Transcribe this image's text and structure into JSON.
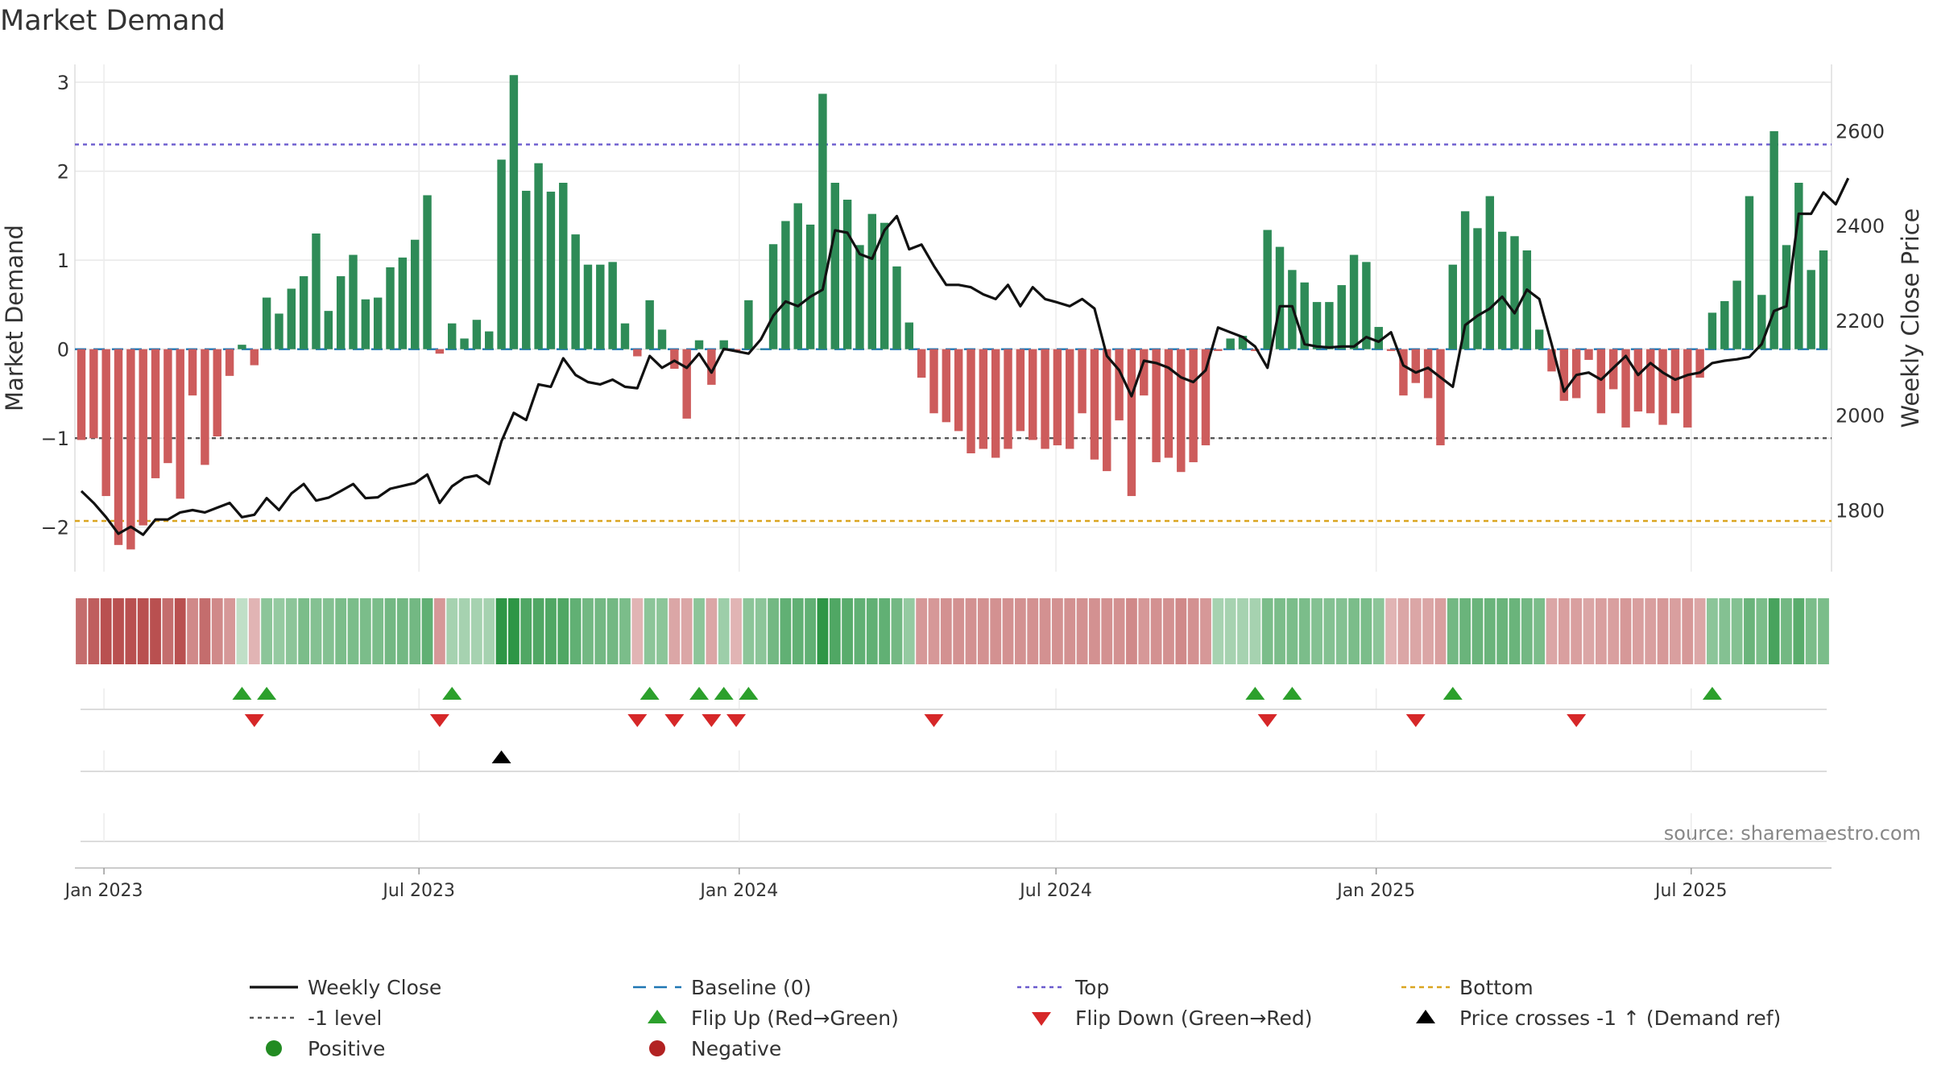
{
  "chart_data": {
    "type": "bar",
    "title": "Market Demand",
    "ylabel_left": "Market Demand",
    "ylabel_right": "Weekly Close Price",
    "source": "source: sharemaestro.com",
    "ylim_left": [
      -2.5,
      3.2
    ],
    "ylim_right": [
      1670,
      2740
    ],
    "yticks_left": [
      3,
      2,
      1,
      0,
      -1,
      -2
    ],
    "yticks_left_labels": [
      "3",
      "2",
      "1",
      "0",
      "−1",
      "−2"
    ],
    "yticks_right": [
      2600,
      2400,
      2200,
      2000,
      1800
    ],
    "yticks_right_labels": [
      "2600",
      "2400",
      "2200",
      "2000",
      "1800"
    ],
    "x_start_date": "2022-12-19",
    "x_end_date": "2025-09-15",
    "x_tick_dates": [
      "2023-01-01",
      "2023-07-01",
      "2024-01-01",
      "2024-07-01",
      "2025-01-01",
      "2025-07-01"
    ],
    "x_tick_labels": [
      "Jan 2023",
      "Jul 2023",
      "Jan 2024",
      "Jul 2024",
      "Jan 2025",
      "Jul 2025"
    ],
    "reference_lines": {
      "top": 2.3,
      "bottom": -1.93,
      "minus_one": -1,
      "baseline": 0
    },
    "colors": {
      "positive": "#2e8b57",
      "negative": "#cd5c5c",
      "close": "#111111",
      "top_line": "#6a5acd",
      "bottom_line": "#daa520",
      "minus_one_line": "#555555",
      "baseline": "#1f77b4",
      "flip_up": "#2ca02c",
      "flip_down": "#d62728"
    },
    "demand_values": [
      -1.02,
      -1.0,
      -1.65,
      -2.2,
      -2.25,
      -1.98,
      -1.45,
      -1.28,
      -1.68,
      -0.52,
      -1.3,
      -0.98,
      -0.3,
      0.05,
      -0.18,
      0.58,
      0.4,
      0.68,
      0.82,
      1.3,
      0.43,
      0.82,
      1.06,
      0.56,
      0.58,
      0.92,
      1.03,
      1.23,
      1.73,
      -0.05,
      0.29,
      0.12,
      0.33,
      0.2,
      2.13,
      3.08,
      1.78,
      2.09,
      1.77,
      1.87,
      1.29,
      0.95,
      0.95,
      0.98,
      0.29,
      -0.08,
      0.55,
      0.22,
      -0.22,
      -0.78,
      0.1,
      -0.4,
      0.1,
      -0.03,
      0.55,
      0.0,
      1.18,
      1.44,
      1.64,
      1.4,
      2.87,
      1.87,
      1.68,
      1.17,
      1.52,
      1.42,
      0.93,
      0.3,
      -0.32,
      -0.72,
      -0.82,
      -0.92,
      -1.17,
      -1.12,
      -1.22,
      -1.12,
      -0.92,
      -1.02,
      -1.12,
      -1.08,
      -1.12,
      -0.72,
      -1.24,
      -1.37,
      -0.8,
      -1.65,
      -0.52,
      -1.27,
      -1.22,
      -1.38,
      -1.27,
      -1.08,
      -0.02,
      0.12,
      0.15,
      -0.02,
      1.34,
      1.15,
      0.89,
      0.75,
      0.53,
      0.53,
      0.72,
      1.06,
      0.98,
      0.25,
      -0.02,
      -0.52,
      -0.38,
      -0.55,
      -1.08,
      0.95,
      1.55,
      1.36,
      1.72,
      1.32,
      1.27,
      1.11,
      0.22,
      -0.25,
      -0.58,
      -0.55,
      -0.12,
      -0.72,
      -0.45,
      -0.88,
      -0.7,
      -0.72,
      -0.85,
      -0.72,
      -0.88,
      -0.32,
      0.41,
      0.54,
      0.77,
      1.72,
      0.61,
      2.45,
      1.17,
      1.87,
      0.89,
      1.11
    ],
    "close_values": [
      1840,
      1815,
      1785,
      1750,
      1765,
      1748,
      1780,
      1780,
      1795,
      1800,
      1795,
      1805,
      1815,
      1785,
      1790,
      1825,
      1800,
      1835,
      1855,
      1820,
      1826,
      1840,
      1855,
      1825,
      1827,
      1845,
      1851,
      1857,
      1875,
      1815,
      1850,
      1868,
      1873,
      1855,
      1945,
      2005,
      1990,
      2065,
      2060,
      2120,
      2085,
      2070,
      2065,
      2075,
      2060,
      2057,
      2125,
      2100,
      2115,
      2100,
      2130,
      2090,
      2140,
      2135,
      2130,
      2160,
      2210,
      2240,
      2230,
      2250,
      2265,
      2390,
      2385,
      2340,
      2330,
      2390,
      2420,
      2350,
      2360,
      2315,
      2275,
      2275,
      2270,
      2255,
      2245,
      2275,
      2230,
      2270,
      2245,
      2238,
      2230,
      2245,
      2225,
      2125,
      2095,
      2040,
      2115,
      2110,
      2100,
      2080,
      2070,
      2095,
      2185,
      2175,
      2165,
      2145,
      2100,
      2230,
      2230,
      2150,
      2145,
      2143,
      2145,
      2145,
      2165,
      2155,
      2175,
      2105,
      2090,
      2100,
      2080,
      2060,
      2190,
      2210,
      2225,
      2250,
      2215,
      2265,
      2245,
      2150,
      2050,
      2085,
      2090,
      2075,
      2100,
      2125,
      2085,
      2110,
      2090,
      2075,
      2085,
      2090,
      2110,
      2115,
      2118,
      2123,
      2150,
      2220,
      2230,
      2425,
      2425,
      2470,
      2445,
      2500
    ],
    "heatmap_values": [
      -0.8,
      -0.9,
      -1.0,
      -1.0,
      -1.0,
      -1.0,
      -1.0,
      -0.8,
      -1.0,
      -0.6,
      -0.8,
      -0.6,
      -0.5,
      0.15,
      -0.3,
      0.45,
      0.4,
      0.45,
      0.55,
      0.5,
      0.5,
      0.55,
      0.55,
      0.55,
      0.55,
      0.6,
      0.6,
      0.6,
      0.7,
      -0.5,
      0.3,
      0.3,
      0.3,
      0.3,
      1.0,
      1.0,
      0.8,
      0.8,
      0.8,
      0.8,
      0.7,
      0.6,
      0.6,
      0.6,
      0.55,
      -0.3,
      0.45,
      0.45,
      -0.4,
      -0.4,
      0.45,
      -0.4,
      0.35,
      -0.3,
      0.45,
      0.45,
      0.6,
      0.7,
      0.7,
      0.7,
      1.0,
      0.8,
      0.75,
      0.7,
      0.7,
      0.7,
      0.6,
      0.4,
      -0.5,
      -0.5,
      -0.55,
      -0.55,
      -0.55,
      -0.55,
      -0.55,
      -0.55,
      -0.55,
      -0.55,
      -0.55,
      -0.55,
      -0.55,
      -0.55,
      -0.55,
      -0.55,
      -0.55,
      -0.6,
      -0.5,
      -0.55,
      -0.55,
      -0.6,
      -0.55,
      -0.5,
      0.3,
      0.3,
      0.3,
      0.3,
      0.55,
      0.55,
      0.55,
      0.55,
      0.5,
      0.5,
      0.5,
      0.55,
      0.55,
      0.45,
      -0.3,
      -0.4,
      -0.4,
      -0.4,
      -0.45,
      0.6,
      0.65,
      0.65,
      0.65,
      0.65,
      0.65,
      0.6,
      0.55,
      -0.4,
      -0.45,
      -0.45,
      -0.4,
      -0.45,
      -0.45,
      -0.5,
      -0.45,
      -0.45,
      -0.5,
      -0.45,
      -0.5,
      -0.4,
      0.45,
      0.5,
      0.5,
      0.65,
      0.55,
      0.85,
      0.6,
      0.75,
      0.55,
      0.55
    ],
    "flip_up_indices": [
      13,
      15,
      30,
      46,
      50,
      52,
      54,
      95,
      98,
      111,
      132
    ],
    "flip_down_indices": [
      14,
      29,
      45,
      48,
      51,
      53,
      69,
      96,
      108,
      121
    ],
    "price_cross_indices": [
      34
    ],
    "legend": [
      [
        "Weekly Close",
        "Baseline (0)",
        "Top",
        "Bottom"
      ],
      [
        "-1 level",
        "Flip Up (Red→Green)",
        "Flip Down (Green→Red)",
        "Price crosses -1 ↑ (Demand ref)"
      ],
      [
        "Positive",
        "Negative"
      ]
    ]
  }
}
